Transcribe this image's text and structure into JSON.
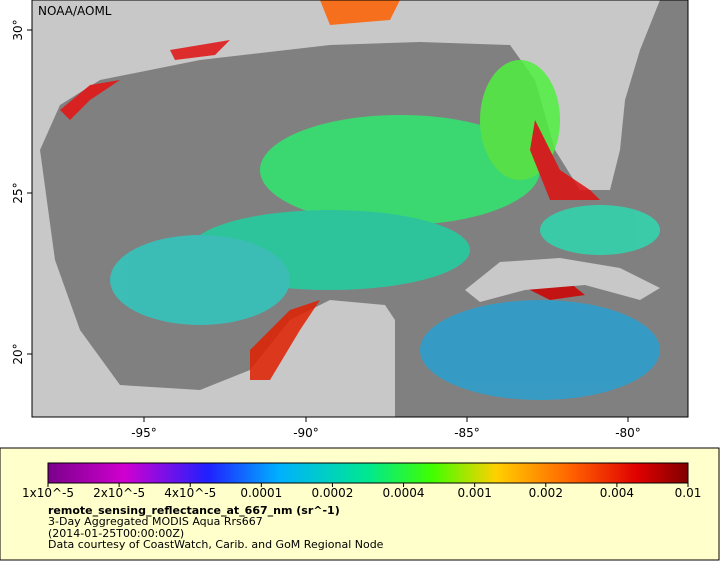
{
  "map": {
    "credit": "NOAA/AOML",
    "lon_ticks": [
      "-95°",
      "-90°",
      "-85°",
      "-80°"
    ],
    "lat_ticks": [
      "30°",
      "25°",
      "20°"
    ]
  },
  "legend": {
    "labels": [
      "1x10^-5",
      "2x10^-5",
      "4x10^-5",
      "0.0001",
      "0.0002",
      "0.0004",
      "0.001",
      "0.002",
      "0.004",
      "0.01"
    ],
    "variable": "remote_sensing_reflectance_at_667_nm (sr^-1)",
    "dataset": "3-Day Aggregated MODIS Aqua Rrs667",
    "time": "(2014-01-25T00:00:00Z)",
    "courtesy": "Data courtesy of CoastWatch, Carib. and GoM Regional Node"
  }
}
